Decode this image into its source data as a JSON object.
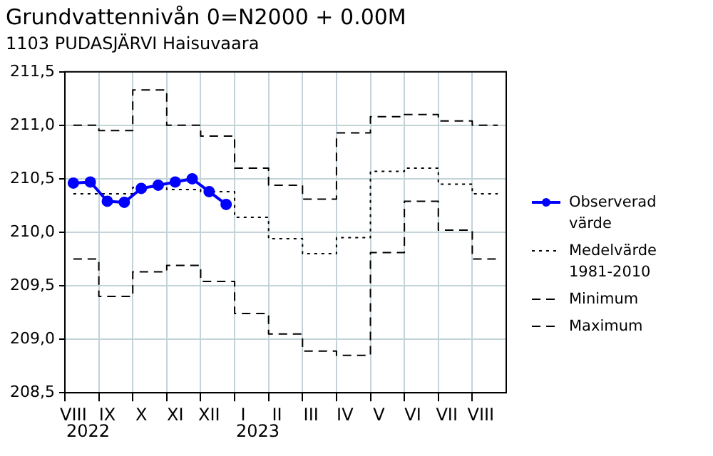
{
  "chart_data": {
    "type": "line",
    "title": "Grundvattennivån 0=N2000 + 0.00M",
    "subtitle": "1103 PUDASJÄRVI Haisuvaara",
    "categories": [
      "VIII",
      null,
      "IX",
      null,
      "X",
      null,
      "XI",
      null,
      "XII",
      null,
      "I",
      null,
      "II",
      null,
      "III",
      null,
      "IV",
      null,
      "V",
      null,
      "VI",
      null,
      "VII",
      null,
      "VIII",
      null
    ],
    "ylim": [
      208.5,
      211.5
    ],
    "yticks": [
      {
        "value": 208.5,
        "label": "208,5"
      },
      {
        "value": 209,
        "label": "209,0"
      },
      {
        "value": 209.5,
        "label": "209,5"
      },
      {
        "value": 210,
        "label": "210,0"
      },
      {
        "value": 210.5,
        "label": "210,5"
      },
      {
        "value": 211,
        "label": "211,0"
      },
      {
        "value": 211.5,
        "label": "211,5"
      }
    ],
    "grid": true,
    "legend": "right",
    "annotations": [
      "2022",
      "2023"
    ],
    "series": [
      {
        "name": "Observerad värde",
        "type": "line",
        "color": "#0000ff",
        "marker": "circle",
        "line_style": "solid",
        "values": [
          210.46,
          210.47,
          210.29,
          210.28,
          210.41,
          210.44,
          210.47,
          210.5,
          210.38,
          210.26,
          null,
          null,
          null,
          null,
          null,
          null,
          null,
          null,
          null,
          null,
          null,
          null,
          null,
          null,
          null,
          null
        ]
      },
      {
        "name": "Medelvärde 1981-2010",
        "type": "step",
        "color": "#000000",
        "marker": "none",
        "line_style": "dotted",
        "values": [
          210.36,
          210.36,
          210.36,
          210.36,
          210.42,
          210.42,
          210.4,
          210.4,
          210.38,
          210.38,
          210.14,
          210.14,
          209.94,
          209.94,
          209.8,
          209.8,
          209.95,
          209.95,
          210.57,
          210.57,
          210.6,
          210.6,
          210.45,
          210.45,
          210.36,
          210.36
        ]
      },
      {
        "name": "Minimum",
        "type": "step",
        "color": "#000000",
        "marker": "none",
        "line_style": "dashed",
        "values": [
          209.75,
          209.75,
          209.4,
          209.4,
          209.63,
          209.63,
          209.69,
          209.69,
          209.54,
          209.54,
          209.24,
          209.24,
          209.05,
          209.05,
          208.89,
          208.89,
          208.85,
          208.85,
          209.81,
          209.81,
          210.29,
          210.29,
          210.02,
          210.02,
          209.75,
          209.75
        ]
      },
      {
        "name": "Maximum",
        "type": "step",
        "color": "#000000",
        "marker": "none",
        "line_style": "dashed",
        "values": [
          211.0,
          211.0,
          210.95,
          210.95,
          211.33,
          211.33,
          211.0,
          211.0,
          210.9,
          210.9,
          210.6,
          210.6,
          210.44,
          210.44,
          210.31,
          210.31,
          210.93,
          210.93,
          211.08,
          211.08,
          211.1,
          211.1,
          211.04,
          211.04,
          211.0,
          211.0
        ]
      }
    ]
  }
}
